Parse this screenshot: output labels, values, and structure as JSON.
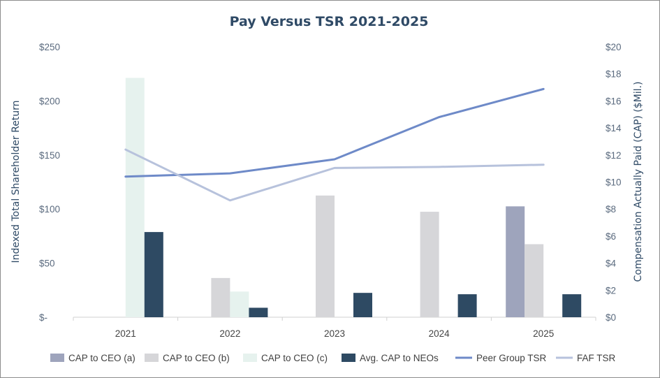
{
  "chart_data": {
    "type": "bar",
    "title": "Pay Versus TSR 2021-2025",
    "ylabel_left": "Indexed Total Shareholder Return",
    "ylabel_right": "Compensation Actually Paid (CAP) ($Mil.)",
    "categories": [
      "2021",
      "2022",
      "2023",
      "2024",
      "2025"
    ],
    "left_axis": {
      "ylim": [
        0,
        250
      ],
      "ticks": [
        0,
        50,
        100,
        150,
        200,
        250
      ],
      "tick_labels": [
        "$-",
        "$50",
        "$100",
        "$150",
        "$200",
        "$250"
      ]
    },
    "right_axis": {
      "ylim": [
        0,
        20
      ],
      "ticks": [
        0,
        2,
        4,
        6,
        8,
        10,
        12,
        14,
        16,
        18,
        20
      ],
      "tick_labels": [
        "$0",
        "$2",
        "$4",
        "$6",
        "$8",
        "$10",
        "$12",
        "$14",
        "$16",
        "$18",
        "$20"
      ]
    },
    "grid": false,
    "legend_position": "bottom",
    "bar_series": [
      {
        "name": "CAP to CEO (a)",
        "color": "#9ea4bc",
        "axis": "right",
        "values": [
          null,
          null,
          null,
          null,
          8.2
        ]
      },
      {
        "name": "CAP to CEO (b)",
        "color": "#d6d6d9",
        "axis": "right",
        "values": [
          null,
          2.9,
          9.0,
          7.8,
          5.4
        ]
      },
      {
        "name": "CAP to CEO (c)",
        "color": "#e6f2ee",
        "axis": "right",
        "values": [
          17.7,
          1.9,
          null,
          null,
          null
        ]
      },
      {
        "name": "Avg. CAP to NEOs",
        "color": "#2e4a63",
        "axis": "right",
        "values": [
          6.3,
          0.7,
          1.8,
          1.7,
          1.7
        ]
      }
    ],
    "line_series": [
      {
        "name": "Peer Group TSR",
        "color": "#6e8ac8",
        "axis": "left",
        "values": [
          130,
          133,
          146,
          185,
          211
        ]
      },
      {
        "name": "FAF TSR",
        "color": "#b7c2dc",
        "axis": "left",
        "values": [
          155,
          108,
          138,
          139,
          141
        ]
      }
    ]
  }
}
